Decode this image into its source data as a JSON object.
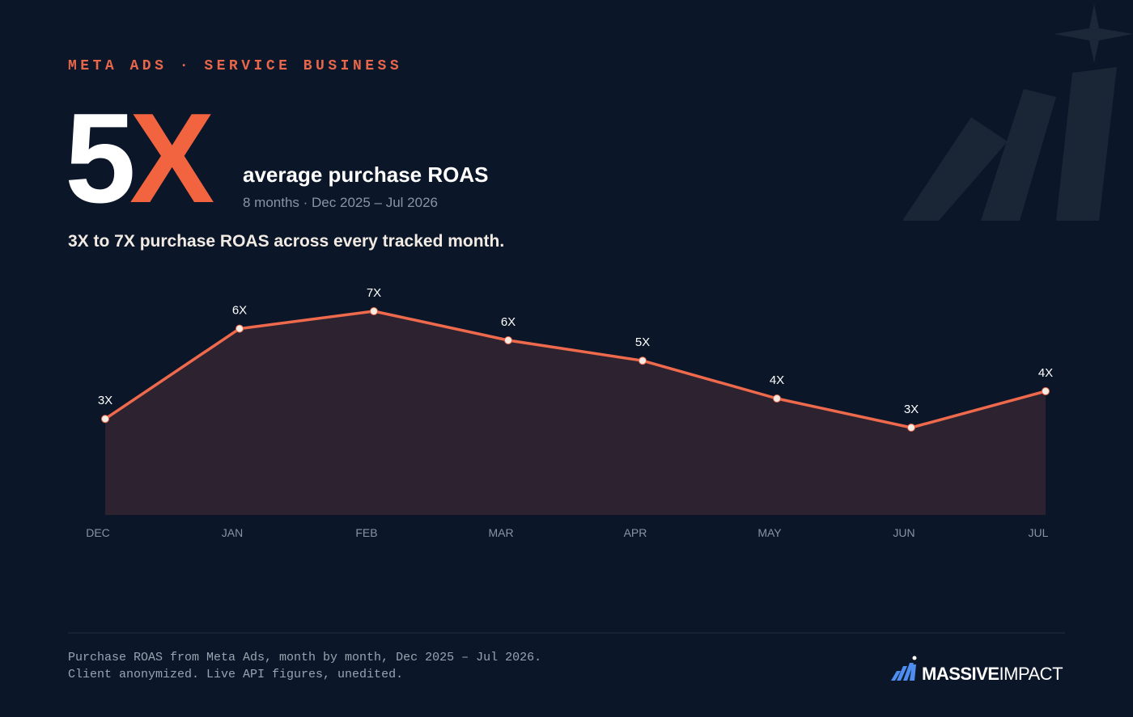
{
  "header": {
    "eyebrow": "META ADS · SERVICE BUSINESS",
    "headline_number": "5",
    "headline_suffix": "X",
    "headline_label": "average purchase ROAS",
    "headline_sub": "8 months · Dec 2025 – Jul 2026",
    "summary": "3X to 7X purchase ROAS across every tracked month."
  },
  "chart_data": {
    "type": "line",
    "categories": [
      "DEC",
      "JAN",
      "FEB",
      "MAR",
      "APR",
      "MAY",
      "JUN",
      "JUL"
    ],
    "values": [
      3.3,
      6.4,
      7.0,
      6.0,
      5.3,
      4.0,
      3.0,
      4.25
    ],
    "value_labels": [
      "3X",
      "6X",
      "7X",
      "6X",
      "5X",
      "4X",
      "3X",
      "4X"
    ],
    "color": "#ef6a4c",
    "ylim": [
      0,
      8
    ]
  },
  "footer": {
    "note_lines": [
      "Purchase ROAS from Meta Ads, month by month, Dec 2025 – Jul 2026.",
      "Client anonymized. Live API figures, unedited."
    ],
    "brand_bold": "MASSIVE",
    "brand_light": "IMPACT"
  }
}
